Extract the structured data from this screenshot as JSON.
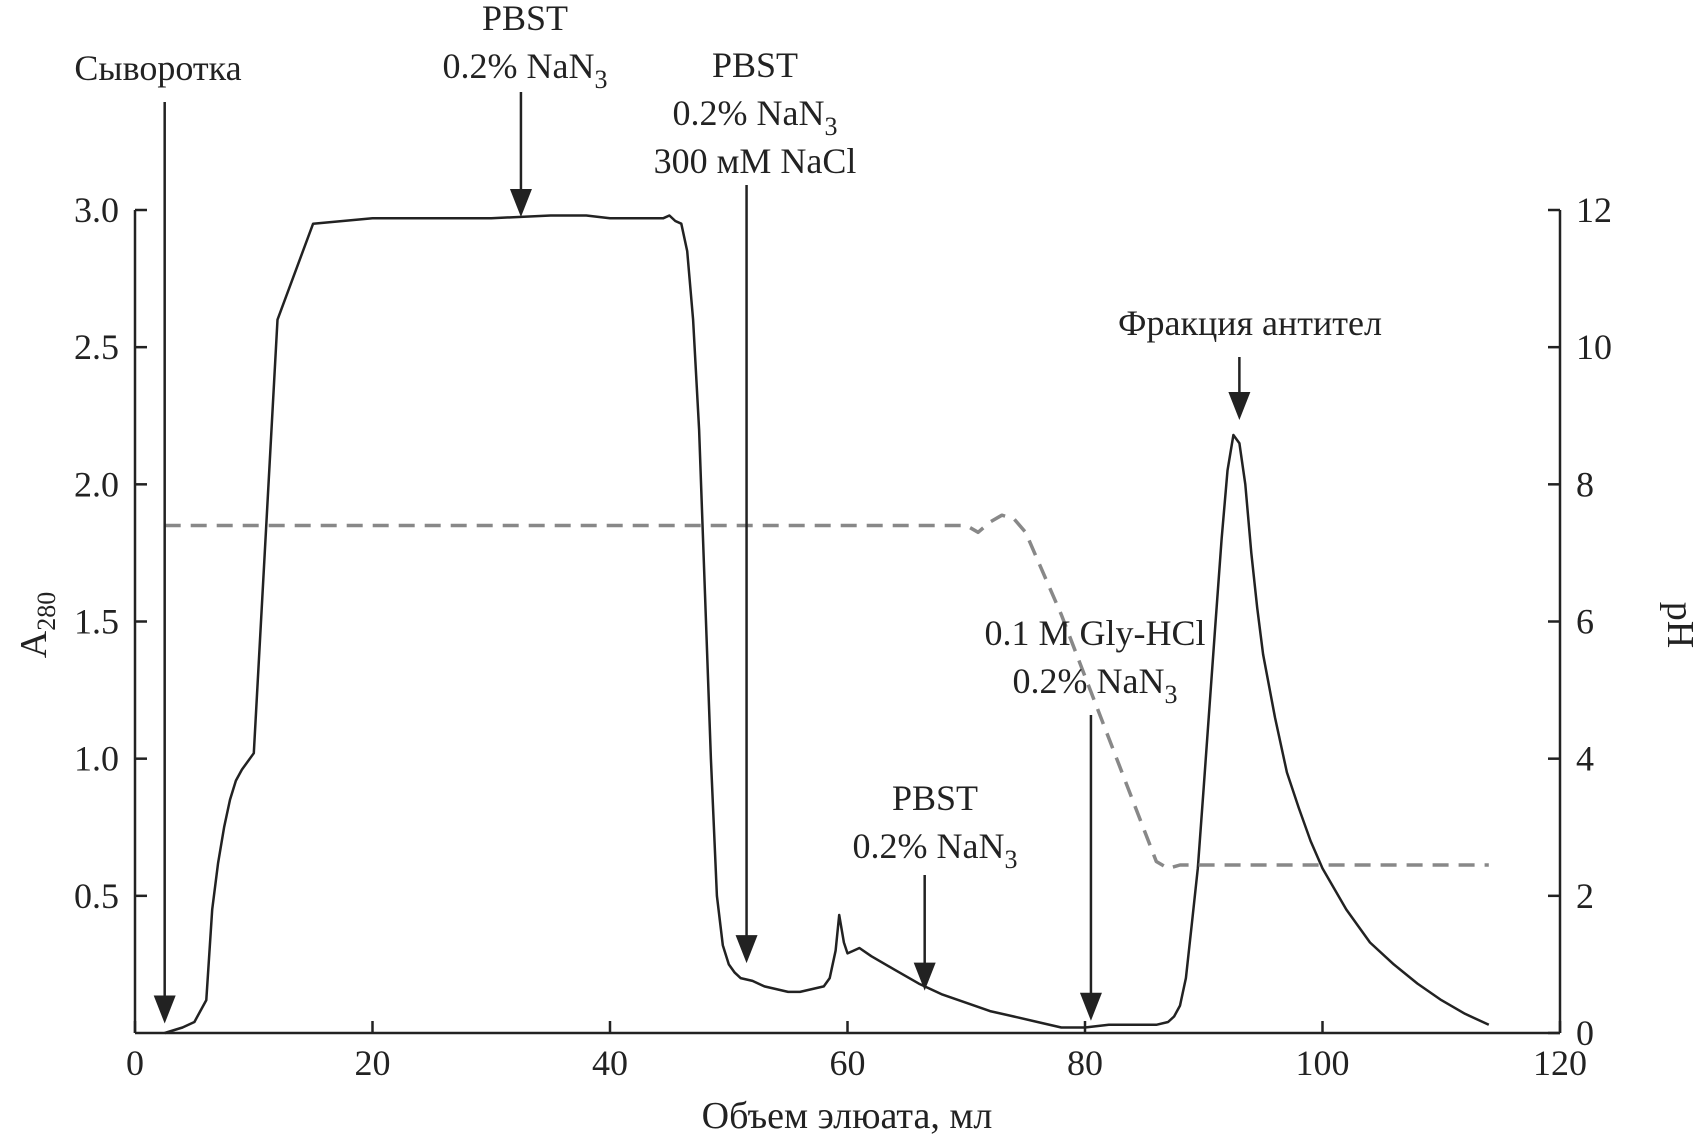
{
  "chart_data": {
    "type": "line",
    "xlabel": "Объем элюата, мл",
    "ylabel": "A",
    "ylabel_sub": "280",
    "y2label": "pH",
    "xlim": [
      0,
      120
    ],
    "ylim": [
      0,
      3.0
    ],
    "y2lim": [
      0,
      12
    ],
    "x_ticks": [
      0,
      20,
      40,
      60,
      80,
      100,
      120
    ],
    "y_ticks": [
      0.5,
      1.0,
      1.5,
      2.0,
      2.5,
      3.0
    ],
    "y_tick_labels": [
      "0.5",
      "1.0",
      "1.5",
      "2.0",
      "2.5",
      "3.0"
    ],
    "y2_ticks": [
      0,
      2,
      4,
      6,
      8,
      10,
      12
    ],
    "colors": {
      "axis": "#222222",
      "absorbance": "#222222",
      "ph": "#888888"
    },
    "series": [
      {
        "name": "A280",
        "axis": "left",
        "style": "solid",
        "x": [
          2.5,
          4,
          5,
          5.5,
          6,
          6.5,
          7,
          7.5,
          8,
          8.5,
          9,
          10,
          12,
          15,
          20,
          25,
          30,
          35,
          38,
          40,
          42,
          43.5,
          44.5,
          45,
          45.5,
          46,
          46.5,
          47,
          47.5,
          48,
          48.5,
          49,
          49.5,
          50,
          50.5,
          51,
          52,
          53,
          54,
          55,
          56,
          57,
          58,
          58.5,
          59,
          59.3,
          59.7,
          60,
          60.5,
          61,
          62,
          64,
          66,
          68,
          70,
          72,
          74,
          76,
          78,
          80,
          82,
          84,
          86,
          87,
          87.5,
          88,
          88.5,
          89,
          89.5,
          90,
          90.5,
          91,
          91.5,
          92,
          92.5,
          93,
          93.5,
          94,
          94.5,
          95,
          96,
          97,
          98,
          99,
          100,
          102,
          104,
          106,
          108,
          110,
          112,
          114
        ],
        "y": [
          0.0,
          0.02,
          0.04,
          0.08,
          0.12,
          0.45,
          0.62,
          0.75,
          0.85,
          0.92,
          0.96,
          1.02,
          2.6,
          2.95,
          2.97,
          2.97,
          2.97,
          2.98,
          2.98,
          2.97,
          2.97,
          2.97,
          2.97,
          2.98,
          2.96,
          2.95,
          2.85,
          2.6,
          2.2,
          1.6,
          1.0,
          0.5,
          0.32,
          0.25,
          0.22,
          0.2,
          0.19,
          0.17,
          0.16,
          0.15,
          0.15,
          0.16,
          0.17,
          0.2,
          0.3,
          0.43,
          0.33,
          0.29,
          0.3,
          0.31,
          0.28,
          0.23,
          0.18,
          0.14,
          0.11,
          0.08,
          0.06,
          0.04,
          0.02,
          0.02,
          0.03,
          0.03,
          0.03,
          0.04,
          0.06,
          0.1,
          0.2,
          0.4,
          0.6,
          0.9,
          1.2,
          1.5,
          1.8,
          2.05,
          2.18,
          2.15,
          2.0,
          1.75,
          1.55,
          1.38,
          1.15,
          0.95,
          0.82,
          0.7,
          0.6,
          0.45,
          0.33,
          0.25,
          0.18,
          0.12,
          0.07,
          0.03
        ]
      },
      {
        "name": "pH",
        "axis": "right",
        "style": "dashed",
        "x": [
          2.5,
          20,
          40,
          60,
          70,
          71,
          72,
          73,
          74,
          75,
          76,
          78,
          80,
          82,
          84,
          86,
          87,
          88,
          90,
          95,
          100,
          105,
          110,
          114
        ],
        "y": [
          7.4,
          7.4,
          7.4,
          7.4,
          7.4,
          7.3,
          7.45,
          7.55,
          7.5,
          7.3,
          6.9,
          6.1,
          5.2,
          4.3,
          3.4,
          2.5,
          2.4,
          2.45,
          2.45,
          2.45,
          2.45,
          2.45,
          2.45,
          2.45
        ]
      }
    ],
    "annotations": [
      {
        "lines": [
          "Сыворотка"
        ],
        "arrow_x": 2.5,
        "arrow_y": 0.02
      },
      {
        "lines": [
          "PBST",
          "0.2% NaN",
          "3"
        ],
        "arrow_x": 32.5,
        "arrow_y": 2.96
      },
      {
        "lines": [
          "PBST",
          "0.2% NaN",
          "3",
          "300 мМ NaCl"
        ],
        "arrow_x": 51.5,
        "arrow_y": 0.24
      },
      {
        "lines": [
          "PBST",
          "0.2% NaN",
          "3"
        ],
        "arrow_x": 66.5,
        "arrow_y": 0.14
      },
      {
        "lines": [
          "0.1 M Gly-HCl",
          "0.2% NaN",
          "3"
        ],
        "arrow_x": 80.5,
        "arrow_y": 0.03
      },
      {
        "lines": [
          "Фракция антител"
        ],
        "arrow_x": 93,
        "arrow_y": 2.22
      }
    ]
  }
}
